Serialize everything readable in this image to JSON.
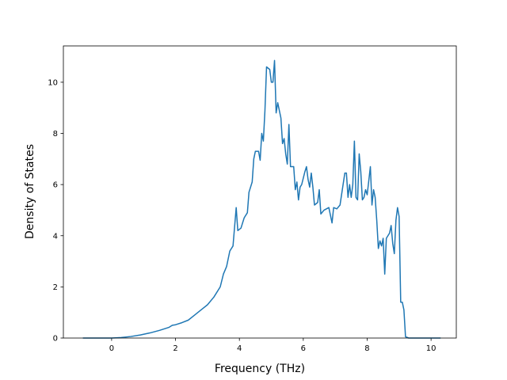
{
  "chart_data": {
    "type": "line",
    "xlabel": "Frequency (THz)",
    "ylabel": "Density of States",
    "color": "#1f77b4",
    "xlim": [
      -1.51,
      10.79
    ],
    "xticks": [
      0,
      2,
      4,
      6,
      8,
      10
    ],
    "ylim": [
      0,
      11.42
    ],
    "yticks": [
      0,
      2,
      4,
      6,
      8,
      10
    ],
    "x": [
      -0.9,
      -0.5,
      0,
      0.3,
      0.6,
      0.9,
      1.2,
      1.5,
      1.8,
      1.9,
      2.0,
      2.2,
      2.4,
      2.6,
      2.8,
      3.0,
      3.2,
      3.4,
      3.5,
      3.6,
      3.7,
      3.8,
      3.9,
      3.95,
      4.05,
      4.15,
      4.25,
      4.3,
      4.4,
      4.45,
      4.5,
      4.6,
      4.65,
      4.7,
      4.75,
      4.8,
      4.85,
      4.95,
      5.0,
      5.05,
      5.1,
      5.15,
      5.2,
      5.3,
      5.35,
      5.4,
      5.45,
      5.5,
      5.55,
      5.6,
      5.7,
      5.75,
      5.8,
      5.85,
      5.9,
      5.95,
      6.05,
      6.1,
      6.15,
      6.2,
      6.25,
      6.3,
      6.35,
      6.45,
      6.5,
      6.55,
      6.65,
      6.8,
      6.85,
      6.9,
      6.95,
      7.05,
      7.15,
      7.3,
      7.35,
      7.4,
      7.45,
      7.5,
      7.55,
      7.6,
      7.65,
      7.7,
      7.75,
      7.8,
      7.85,
      7.9,
      7.95,
      8.0,
      8.1,
      8.15,
      8.2,
      8.25,
      8.3,
      8.35,
      8.4,
      8.45,
      8.5,
      8.55,
      8.6,
      8.7,
      8.75,
      8.8,
      8.85,
      8.9,
      8.95,
      9.0,
      9.05,
      9.1,
      9.15,
      9.2,
      9.3,
      9.6,
      10.3
    ],
    "values": [
      0,
      0,
      0,
      0.02,
      0.06,
      0.12,
      0.2,
      0.3,
      0.42,
      0.5,
      0.52,
      0.6,
      0.7,
      0.9,
      1.1,
      1.3,
      1.6,
      2.0,
      2.5,
      2.8,
      3.4,
      3.6,
      5.1,
      4.2,
      4.3,
      4.7,
      4.9,
      5.7,
      6.1,
      7.0,
      7.3,
      7.3,
      6.95,
      8.0,
      7.7,
      8.9,
      10.6,
      10.5,
      10.0,
      10.0,
      10.85,
      8.8,
      9.2,
      8.6,
      7.6,
      7.8,
      7.2,
      6.8,
      8.35,
      6.7,
      6.7,
      5.8,
      6.1,
      5.4,
      5.9,
      6.0,
      6.5,
      6.7,
      6.2,
      5.9,
      6.45,
      5.9,
      5.2,
      5.3,
      5.8,
      4.85,
      5.0,
      5.1,
      4.8,
      4.5,
      5.1,
      5.05,
      5.2,
      6.45,
      6.45,
      5.5,
      6.0,
      5.5,
      6.0,
      7.7,
      5.5,
      5.4,
      7.2,
      6.5,
      5.4,
      5.5,
      5.8,
      5.6,
      6.7,
      5.2,
      5.8,
      5.5,
      4.6,
      3.5,
      3.8,
      3.6,
      3.9,
      2.5,
      3.9,
      4.1,
      4.4,
      3.7,
      3.3,
      4.6,
      5.1,
      4.75,
      1.4,
      1.4,
      1.1,
      0.05,
      0,
      0,
      0
    ]
  }
}
